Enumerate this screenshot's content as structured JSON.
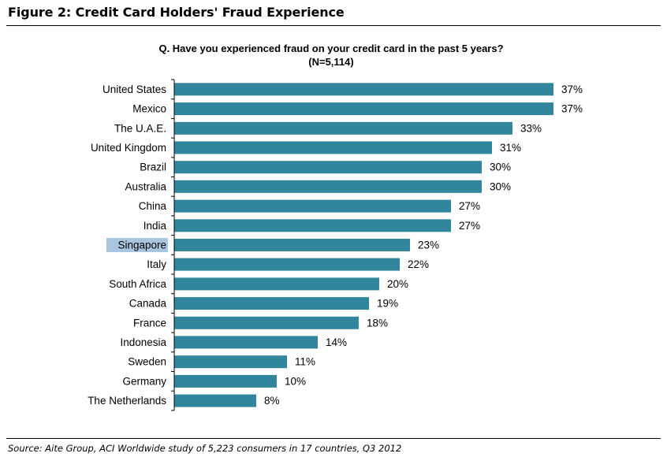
{
  "figure": {
    "title": "Figure 2: Credit Card Holders' Fraud Experience",
    "source": "Source: Aite Group, ACI Worldwide study of 5,223 consumers in 17 countries, Q3 2012"
  },
  "colors": {
    "bar": "#31859c",
    "highlight": "#a9c5df"
  },
  "chart_data": {
    "type": "bar",
    "orientation": "horizontal",
    "title": "Q. Have you experienced fraud on your credit card in the past 5 years?",
    "subtitle": "(N=5,114)",
    "categories": [
      "United States",
      "Mexico",
      "The U.A.E.",
      "United Kingdom",
      "Brazil",
      "Australia",
      "China",
      "India",
      "Singapore",
      "Italy",
      "South Africa",
      "Canada",
      "France",
      "Indonesia",
      "Sweden",
      "Germany",
      "The Netherlands"
    ],
    "values": [
      37,
      37,
      33,
      31,
      30,
      30,
      27,
      27,
      23,
      22,
      20,
      19,
      18,
      14,
      11,
      10,
      8
    ],
    "data_labels": [
      "37%",
      "37%",
      "33%",
      "31%",
      "30%",
      "30%",
      "27%",
      "27%",
      "23%",
      "22%",
      "20%",
      "19%",
      "18%",
      "14%",
      "11%",
      "10%",
      "8%"
    ],
    "highlighted_category": "Singapore",
    "xlim": [
      0,
      37
    ],
    "grid": false,
    "legend": "none"
  }
}
